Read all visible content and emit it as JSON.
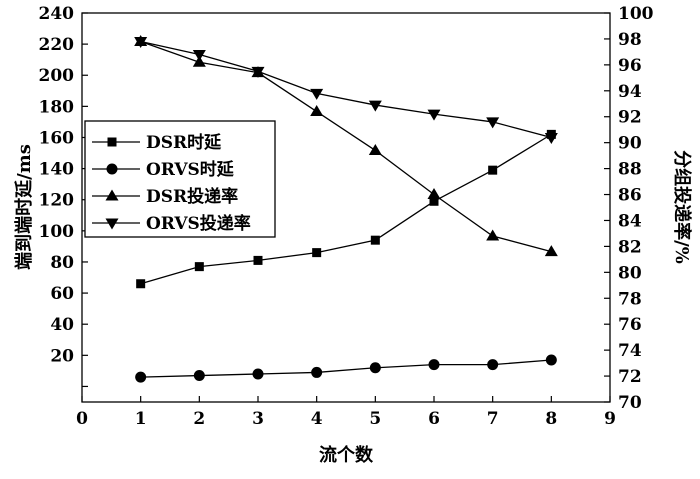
{
  "chart_data": {
    "type": "line",
    "title": "",
    "xlabel": "流个数",
    "ylabel_left": "端到端时延/ms",
    "ylabel_right": "分组投递率/%",
    "x": [
      1,
      2,
      3,
      4,
      5,
      6,
      7,
      8
    ],
    "xlim": [
      0,
      9
    ],
    "ylim_left": [
      -10,
      240
    ],
    "ylim_right": [
      70,
      100
    ],
    "xticks": [
      "0",
      "1",
      "2",
      "3",
      "4",
      "5",
      "6",
      "7",
      "8",
      "9"
    ],
    "yticks_left": [
      "20",
      "40",
      "60",
      "80",
      "100",
      "120",
      "140",
      "160",
      "180",
      "200",
      "220",
      "240"
    ],
    "yticks_right": [
      "70",
      "72",
      "74",
      "76",
      "78",
      "80",
      "82",
      "84",
      "86",
      "88",
      "90",
      "92",
      "94",
      "96",
      "98",
      "100"
    ],
    "grid": false,
    "legend_position": "middle-left",
    "series": [
      {
        "name": "DSR时延",
        "axis": "left",
        "marker": "square",
        "values": [
          66,
          77,
          81,
          86,
          94,
          119,
          139,
          162
        ]
      },
      {
        "name": "ORVS时延",
        "axis": "left",
        "marker": "circle",
        "values": [
          6,
          7,
          8,
          9,
          12,
          14,
          14,
          17
        ]
      },
      {
        "name": "DSR投递率",
        "axis": "right",
        "marker": "triangle-up",
        "values": [
          97.8,
          96.2,
          95.4,
          92.4,
          89.4,
          86.0,
          82.8,
          81.6
        ]
      },
      {
        "name": "ORVS投递率",
        "axis": "right",
        "marker": "triangle-down",
        "values": [
          97.8,
          96.8,
          95.5,
          93.8,
          92.9,
          92.2,
          91.6,
          90.4
        ]
      }
    ]
  }
}
